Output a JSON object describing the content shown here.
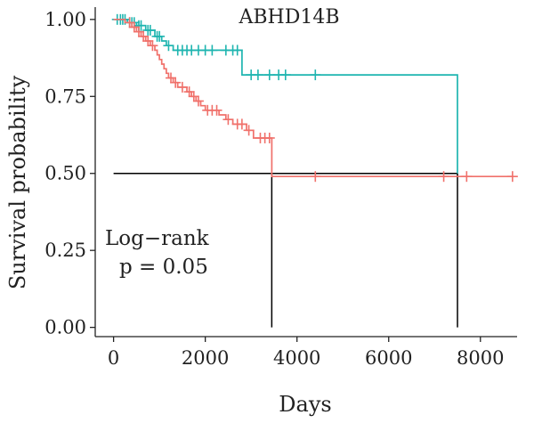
{
  "chart_data": {
    "type": "line",
    "title": "ABHD14B",
    "xlabel": "Days",
    "ylabel": "Survival probability",
    "xlim": [
      -400,
      8800
    ],
    "ylim": [
      -0.03,
      1.04
    ],
    "x_ticks": [
      0,
      2000,
      4000,
      6000,
      8000
    ],
    "x_tick_labels": [
      "0",
      "2000",
      "4000",
      "6000",
      "8000"
    ],
    "y_ticks": [
      0.0,
      0.25,
      0.5,
      0.75,
      1.0
    ],
    "y_tick_labels": [
      "0.00",
      "0.25",
      "0.50",
      "0.75",
      "1.00"
    ],
    "grid": false,
    "legend": "none",
    "annotation_lines": [
      "Log−rank",
      "p = 0.05"
    ],
    "median_reference": {
      "y": 0.5,
      "x_values": [
        3450,
        7500
      ],
      "color": "#000000"
    },
    "series": [
      {
        "color": "#1fb5b0",
        "steps": [
          [
            0,
            1.0
          ],
          [
            300,
            0.99
          ],
          [
            500,
            0.98
          ],
          [
            700,
            0.965
          ],
          [
            900,
            0.945
          ],
          [
            1050,
            0.93
          ],
          [
            1150,
            0.915
          ],
          [
            1300,
            0.9
          ],
          [
            2800,
            0.82
          ],
          [
            7500,
            0.5
          ]
        ],
        "end_x": 7500,
        "censored": [
          [
            80,
            1.0
          ],
          [
            150,
            1.0
          ],
          [
            200,
            1.0
          ],
          [
            250,
            1.0
          ],
          [
            350,
            0.99
          ],
          [
            400,
            0.99
          ],
          [
            450,
            0.99
          ],
          [
            550,
            0.98
          ],
          [
            600,
            0.98
          ],
          [
            750,
            0.965
          ],
          [
            800,
            0.965
          ],
          [
            950,
            0.945
          ],
          [
            1000,
            0.945
          ],
          [
            1200,
            0.915
          ],
          [
            1400,
            0.9
          ],
          [
            1500,
            0.9
          ],
          [
            1600,
            0.9
          ],
          [
            1700,
            0.9
          ],
          [
            1850,
            0.9
          ],
          [
            2000,
            0.9
          ],
          [
            2150,
            0.9
          ],
          [
            2450,
            0.9
          ],
          [
            2600,
            0.9
          ],
          [
            2700,
            0.9
          ],
          [
            3000,
            0.82
          ],
          [
            3150,
            0.82
          ],
          [
            3400,
            0.82
          ],
          [
            3600,
            0.82
          ],
          [
            3750,
            0.82
          ],
          [
            4400,
            0.82
          ]
        ]
      },
      {
        "color": "#f0716b",
        "steps": [
          [
            0,
            1.0
          ],
          [
            250,
            0.99
          ],
          [
            400,
            0.975
          ],
          [
            500,
            0.96
          ],
          [
            600,
            0.945
          ],
          [
            700,
            0.93
          ],
          [
            800,
            0.915
          ],
          [
            900,
            0.9
          ],
          [
            950,
            0.885
          ],
          [
            1000,
            0.87
          ],
          [
            1050,
            0.855
          ],
          [
            1100,
            0.84
          ],
          [
            1150,
            0.825
          ],
          [
            1200,
            0.81
          ],
          [
            1300,
            0.795
          ],
          [
            1400,
            0.78
          ],
          [
            1600,
            0.765
          ],
          [
            1700,
            0.75
          ],
          [
            1800,
            0.735
          ],
          [
            1900,
            0.72
          ],
          [
            2000,
            0.705
          ],
          [
            2300,
            0.69
          ],
          [
            2450,
            0.675
          ],
          [
            2600,
            0.66
          ],
          [
            2900,
            0.64
          ],
          [
            3050,
            0.615
          ],
          [
            3450,
            0.49
          ],
          [
            7500,
            0.49
          ]
        ],
        "end_x": 8700,
        "censored": [
          [
            350,
            0.99
          ],
          [
            450,
            0.975
          ],
          [
            550,
            0.96
          ],
          [
            650,
            0.945
          ],
          [
            750,
            0.93
          ],
          [
            850,
            0.915
          ],
          [
            1250,
            0.81
          ],
          [
            1350,
            0.795
          ],
          [
            1500,
            0.78
          ],
          [
            1650,
            0.765
          ],
          [
            1750,
            0.75
          ],
          [
            1850,
            0.735
          ],
          [
            2050,
            0.705
          ],
          [
            2150,
            0.705
          ],
          [
            2250,
            0.705
          ],
          [
            2500,
            0.675
          ],
          [
            2700,
            0.66
          ],
          [
            2800,
            0.66
          ],
          [
            2950,
            0.64
          ],
          [
            3200,
            0.615
          ],
          [
            3300,
            0.615
          ],
          [
            3400,
            0.615
          ],
          [
            4400,
            0.49
          ],
          [
            7200,
            0.49
          ],
          [
            7700,
            0.49
          ],
          [
            8700,
            0.49
          ]
        ]
      }
    ]
  }
}
